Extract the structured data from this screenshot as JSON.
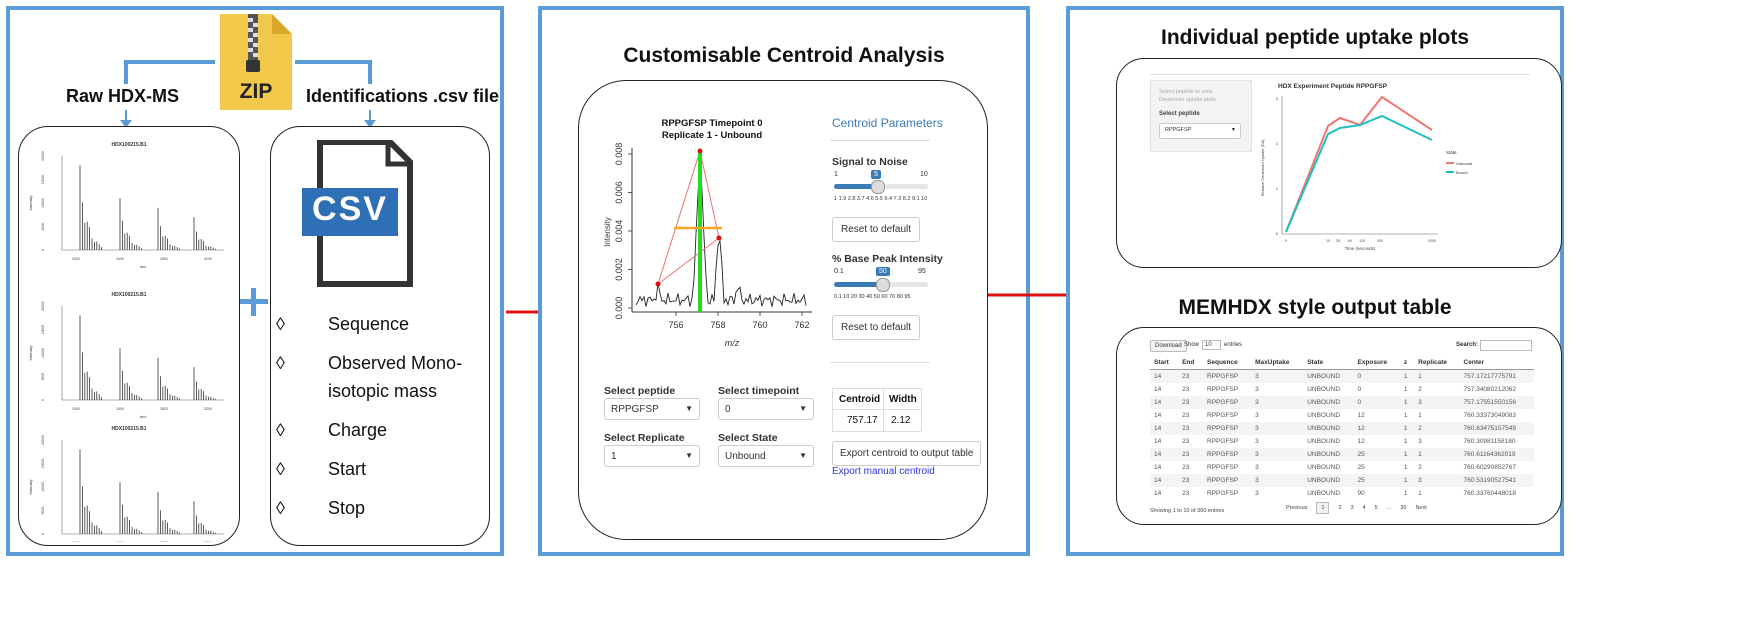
{
  "left": {
    "raw_label": "Raw HDX-MS",
    "ids_label": "Identifications .csv file",
    "zip_text": "ZIP",
    "csv_text": "CSV",
    "spectra": [
      {
        "title": "HDX100215.B1",
        "ylabel": "Intensity",
        "xlabel": "m/z",
        "yticks": [
          "20000",
          "15000",
          "10000",
          "5000",
          "0"
        ],
        "xticks": [
          "2000",
          "2400",
          "2800",
          "3200"
        ]
      },
      {
        "title": "HDX100215.B1",
        "ylabel": "Intensity",
        "xlabel": "m/z",
        "yticks": [
          "20000",
          "15000",
          "10000",
          "5000",
          "0"
        ],
        "xticks": [
          "2000",
          "2400",
          "2800",
          "3200"
        ]
      },
      {
        "title": "HDX100215.B1",
        "ylabel": "Intensity",
        "xlabel": "m/z",
        "yticks": [
          "20000",
          "15000",
          "10000",
          "5000",
          "0"
        ],
        "xticks": [
          "2000",
          "2400",
          "2800",
          "3200"
        ]
      }
    ],
    "csv_fields": [
      "Sequence",
      "Observed Mono-",
      "isotopic  mass",
      "Charge",
      "Start",
      "Stop"
    ],
    "diamond": "◊"
  },
  "middle": {
    "title": "Customisable Centroid Analysis",
    "plot_title_1": "RPPGFSP Timepoint 0",
    "plot_title_2": "Replicate 1 - Unbound",
    "plot_ylabel": "Intensity",
    "plot_xlabel": "m/z",
    "plot_yticks": [
      "0.008",
      "0.006",
      "0.004",
      "0.002",
      "0.000"
    ],
    "plot_xticks": [
      "756",
      "758",
      "760",
      "762"
    ],
    "params_title": "Centroid Parameters",
    "snr_label": "Signal to Noise",
    "snr_min": "1",
    "snr_max": "10",
    "snr_value": "5",
    "snr_ticks": "1  1.9 2.8  3.7  4.6  5.5  6.4  7.3  8.2  9.1  10",
    "reset_label": "Reset to default",
    "bpi_label": "% Base Peak Intensity",
    "bpi_min": "0.1",
    "bpi_max": "95",
    "bpi_value": "50",
    "bpi_ticks": "0.1 10  20  30  40  50  60  70  80  95",
    "select_peptide_label": "Select peptide",
    "select_peptide_value": "RPPGFSP",
    "select_timepoint_label": "Select timepoint",
    "select_timepoint_value": "0",
    "select_replicate_label": "Select Replicate",
    "select_replicate_value": "1",
    "select_state_label": "Select State",
    "select_state_value": "Unbound",
    "centroid_header": "Centroid",
    "width_header": "Width",
    "centroid_value": "757.17",
    "width_value": "2.12",
    "export_btn": "Export centroid to output table",
    "export_link": "Export manual centroid"
  },
  "right": {
    "uptake_title": "Individual peptide uptake plots",
    "side_hint_1": "Select peptide to view",
    "side_hint_2": "Deuterium uptake plots",
    "side_select_label": "Select peptide",
    "side_select_value": "RPPGFSP",
    "uptake_plot_title": "HDX Experiment Peptide RPPGFSP",
    "uptake_ylabel": "Relative Deuterium Uptake (Da)",
    "uptake_xlabel": "Time (seconds)",
    "legend_title": "State",
    "legend_unbound": "Unbound",
    "legend_bound": "Bound",
    "unbound_color": "#f0766e",
    "bound_color": "#1fbfbf",
    "table_title": "MEMHDX style output table",
    "download_label": "Download",
    "show_label": "Show",
    "show_value": "10",
    "entries_label": "entries",
    "search_label": "Search:",
    "columns": [
      "Start",
      "End",
      "Sequence",
      "MaxUptake",
      "State",
      "Exposure",
      "z",
      "Replicate",
      "Center"
    ],
    "rows": [
      [
        "14",
        "23",
        "RPPGFSP",
        "3",
        "UNBOUND",
        "0",
        "1",
        "1",
        "757.17217775791"
      ],
      [
        "14",
        "23",
        "RPPGFSP",
        "3",
        "UNBOUND",
        "0",
        "1",
        "2",
        "757.34080212062"
      ],
      [
        "14",
        "23",
        "RPPGFSP",
        "3",
        "UNBOUND",
        "0",
        "1",
        "3",
        "757.17551550156"
      ],
      [
        "14",
        "23",
        "RPPGFSP",
        "3",
        "UNBOUND",
        "12",
        "1",
        "1",
        "760.33373049083"
      ],
      [
        "14",
        "23",
        "RPPGFSP",
        "3",
        "UNBOUND",
        "12",
        "1",
        "2",
        "760.63475157549"
      ],
      [
        "14",
        "23",
        "RPPGFSP",
        "3",
        "UNBOUND",
        "12",
        "1",
        "3",
        "760.30981158180"
      ],
      [
        "14",
        "23",
        "RPPGFSP",
        "3",
        "UNBOUND",
        "25",
        "1",
        "1",
        "760.61164362019"
      ],
      [
        "14",
        "23",
        "RPPGFSP",
        "3",
        "UNBOUND",
        "25",
        "1",
        "2",
        "760.60290852767"
      ],
      [
        "14",
        "23",
        "RPPGFSP",
        "3",
        "UNBOUND",
        "25",
        "1",
        "3",
        "760.53190527541"
      ],
      [
        "14",
        "23",
        "RPPGFSP",
        "3",
        "UNBOUND",
        "90",
        "1",
        "1",
        "760.33760448018"
      ]
    ],
    "footer_info": "Showing 1 to 10 of 300 entries",
    "pager": [
      "Previous",
      "1",
      "2",
      "3",
      "4",
      "5",
      "...",
      "30",
      "Next"
    ]
  }
}
